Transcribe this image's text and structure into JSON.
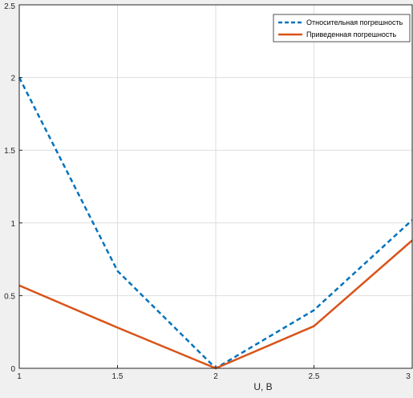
{
  "chart_data": {
    "type": "line",
    "title": "",
    "xlabel": "U, B",
    "ylabel": "",
    "xlim": [
      1,
      3
    ],
    "ylim": [
      0,
      2.5
    ],
    "xticks": [
      1,
      1.5,
      2,
      2.5,
      3
    ],
    "xtick_labels": [
      "1",
      "1.5",
      "2",
      "2.5",
      "3"
    ],
    "yticks": [
      0,
      0.5,
      1,
      1.5,
      2,
      2.5
    ],
    "ytick_labels": [
      "0",
      "0.5",
      "1",
      "1.5",
      "2",
      "2.5"
    ],
    "grid": true,
    "legend_position": "top-right",
    "x": [
      1,
      1.5,
      2,
      2.5,
      3
    ],
    "series": [
      {
        "name": "Относительная погрешность",
        "values": [
          2.0,
          0.67,
          0.0,
          0.4,
          1.02
        ],
        "color": "#0072BD",
        "style": "dashed"
      },
      {
        "name": "Приведенная погрешность",
        "values": [
          0.57,
          0.28,
          0.0,
          0.29,
          0.88
        ],
        "color": "#D95319",
        "style": "solid"
      }
    ]
  }
}
